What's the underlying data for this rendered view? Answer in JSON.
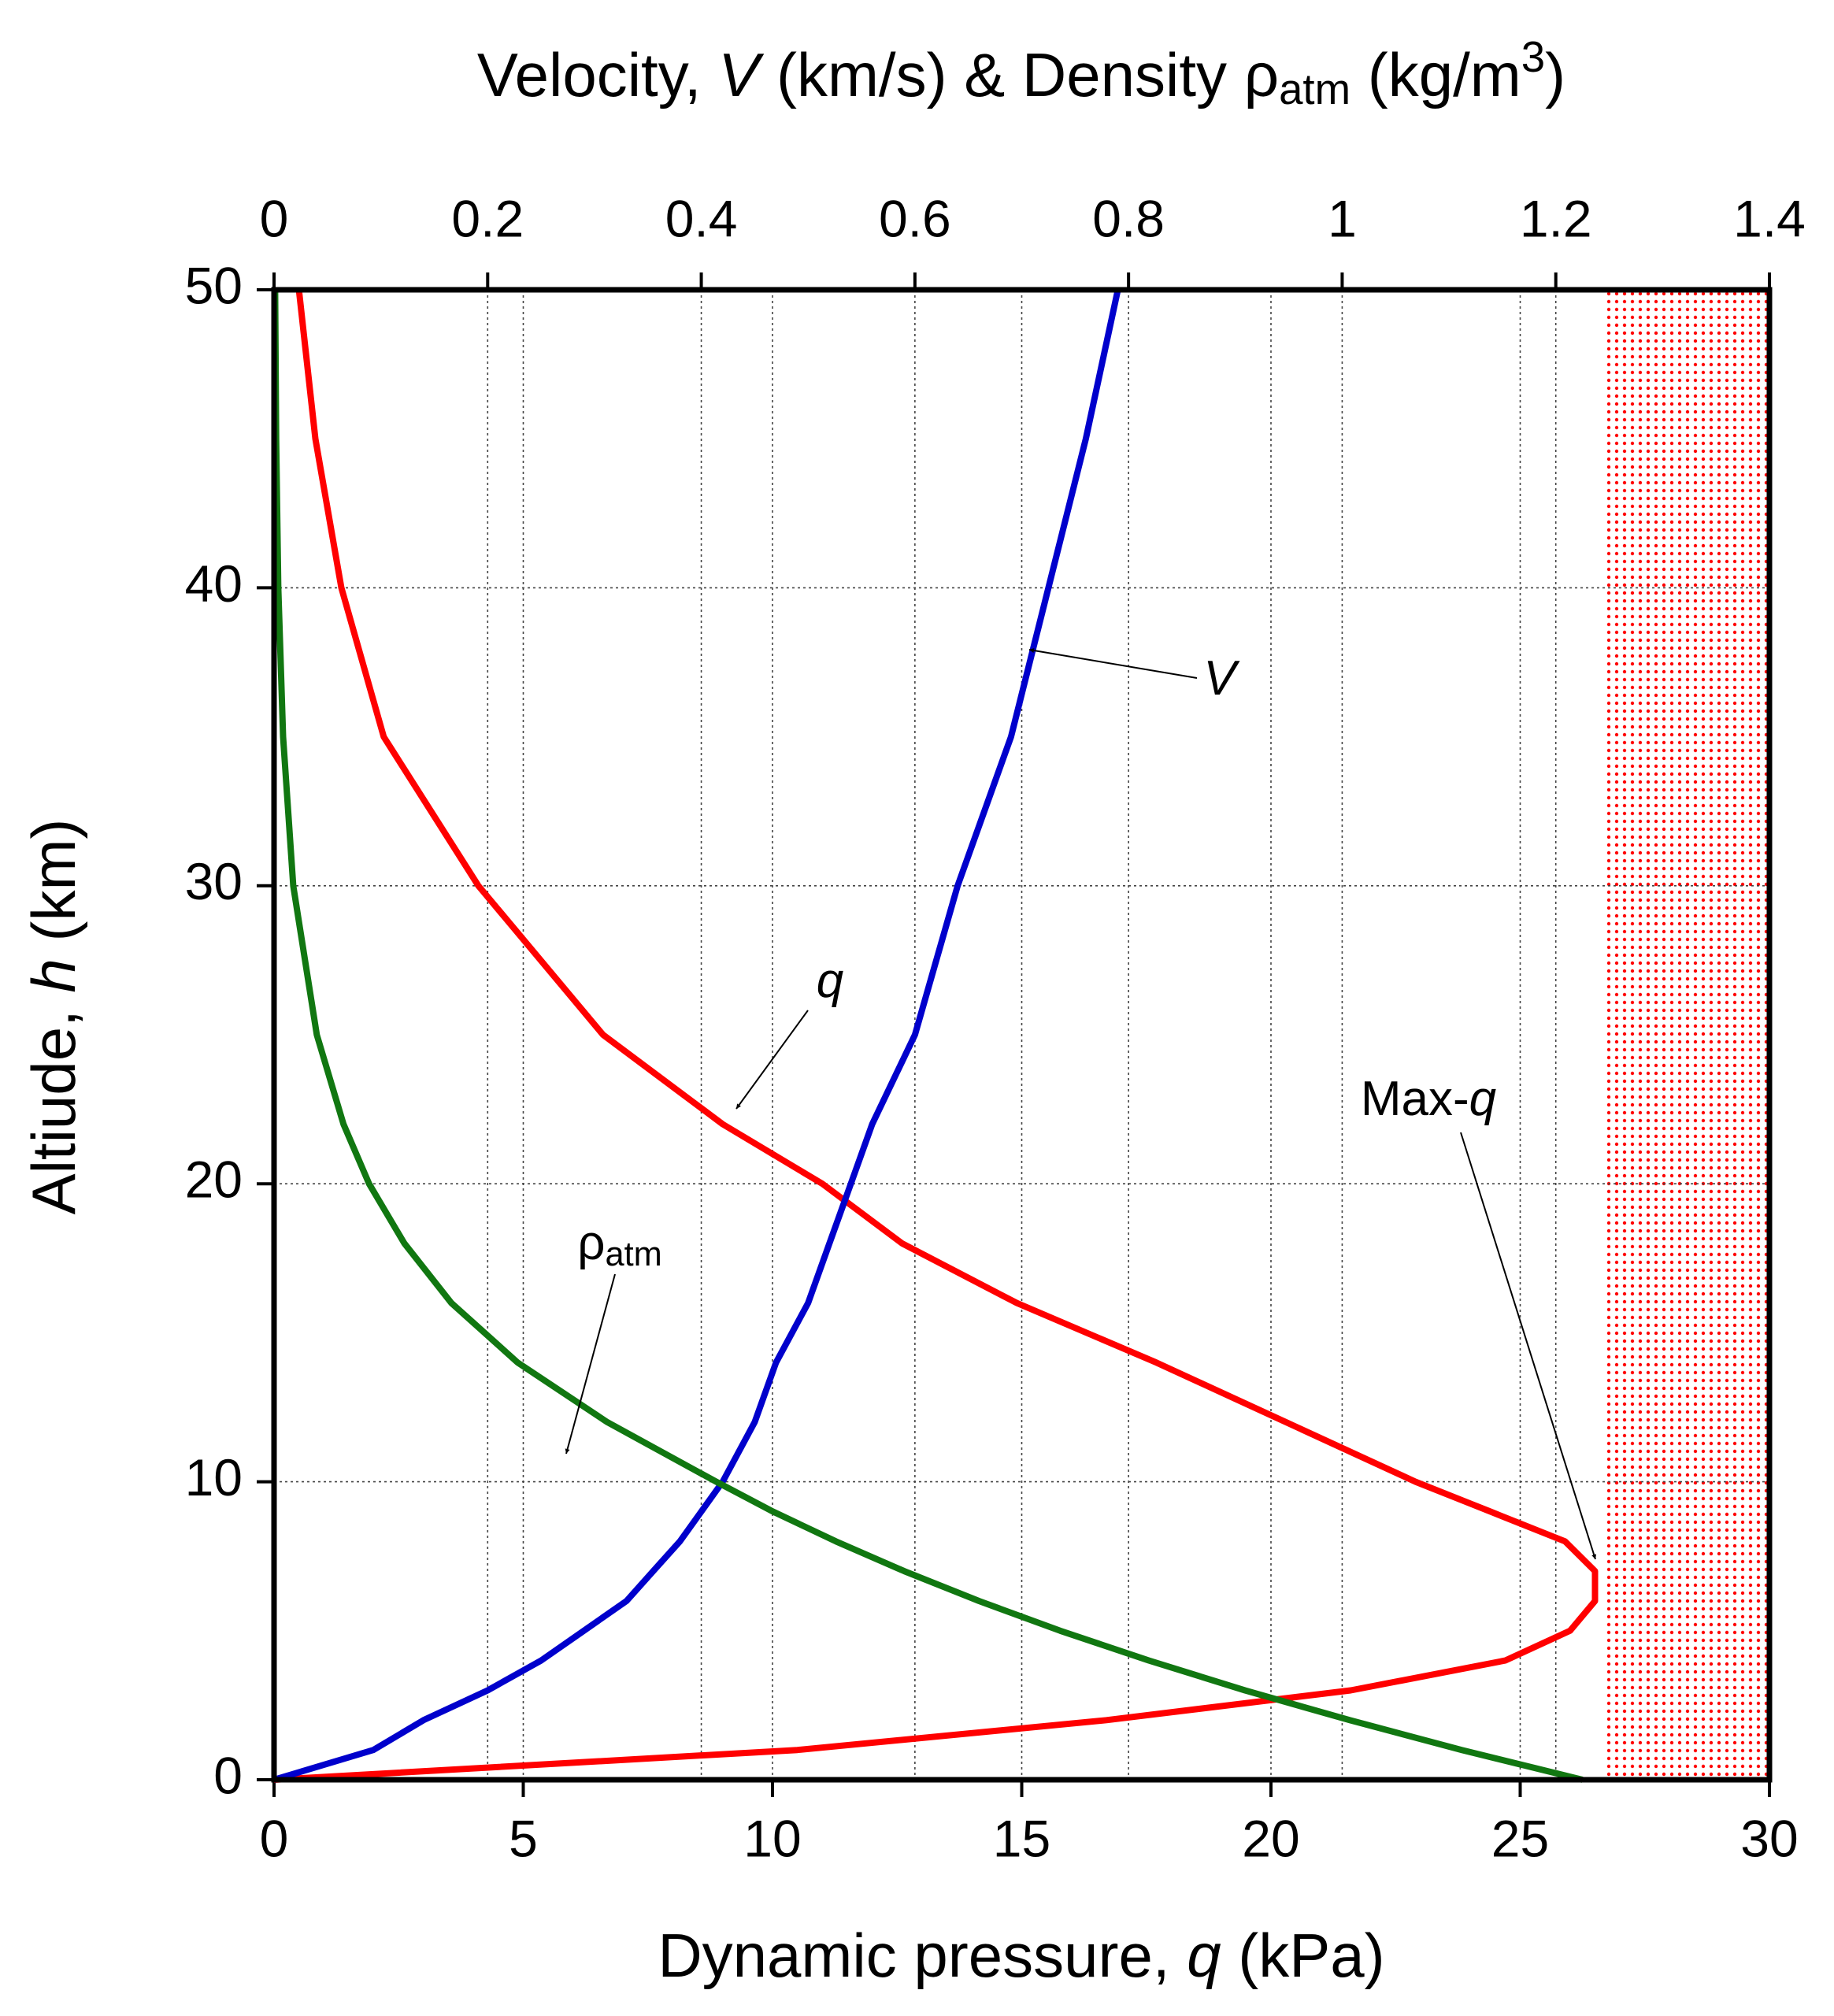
{
  "chart_data": {
    "type": "line",
    "xlabel": [
      {
        "text": "Dynamic pressure, "
      },
      {
        "text": "q",
        "style": "italic"
      },
      {
        "text": " (kPa)"
      }
    ],
    "x2label": [
      {
        "text": "Velocity, "
      },
      {
        "text": "V",
        "style": "italic"
      },
      {
        "text": " (km/s) & Density ρ"
      },
      {
        "text": "atm",
        "style": "sub"
      },
      {
        "text": " (kg/m"
      },
      {
        "text": "3",
        "style": "sup"
      },
      {
        "text": ")"
      }
    ],
    "ylabel": [
      {
        "text": "Altiude, "
      },
      {
        "text": "h",
        "style": "italic"
      },
      {
        "text": " (km)"
      }
    ],
    "xlim": [
      0,
      30
    ],
    "xticks": [
      0,
      5,
      10,
      15,
      20,
      25,
      30
    ],
    "x2lim": [
      0,
      1.4
    ],
    "x2ticks": [
      0,
      0.2,
      0.4,
      0.6,
      0.8,
      1,
      1.2,
      1.4
    ],
    "ylim": [
      0,
      50
    ],
    "yticks": [
      0,
      10,
      20,
      30,
      40,
      50
    ],
    "grid": true,
    "y": [
      0,
      1,
      2,
      3,
      4,
      5,
      6,
      7,
      8,
      9,
      10,
      12,
      14,
      16,
      18,
      20,
      22,
      25,
      30,
      35,
      40,
      45,
      50
    ],
    "series": [
      {
        "name": "q",
        "color": "#ff0000",
        "axis": "x",
        "values": [
          0,
          10.5,
          16.7,
          21.6,
          24.7,
          26.0,
          26.5,
          26.5,
          25.9,
          24.4,
          22.9,
          20.3,
          17.7,
          14.9,
          12.6,
          11.0,
          9.0,
          6.6,
          4.1,
          2.2,
          1.35,
          0.83,
          0.5
        ]
      },
      {
        "name": "V",
        "color": "#0000cc",
        "axis": "x2",
        "values": [
          0,
          0.093,
          0.14,
          0.2,
          0.25,
          0.29,
          0.33,
          0.355,
          0.38,
          0.4,
          0.42,
          0.45,
          0.47,
          0.5,
          0.52,
          0.54,
          0.56,
          0.6,
          0.64,
          0.69,
          0.725,
          0.76,
          0.79
        ]
      },
      {
        "name": "ρatm",
        "color": "#117711",
        "axis": "x2",
        "values": [
          1.225,
          1.112,
          1.007,
          0.909,
          0.819,
          0.736,
          0.66,
          0.59,
          0.526,
          0.467,
          0.414,
          0.312,
          0.228,
          0.166,
          0.122,
          0.089,
          0.065,
          0.04,
          0.018,
          0.0085,
          0.004,
          0.002,
          0.001
        ]
      }
    ],
    "shade": {
      "color": "#ff0000",
      "xrange": [
        26.7,
        30
      ]
    },
    "annotations": [
      {
        "parts": [
          {
            "text": "V",
            "style": "italic"
          }
        ]
      },
      {
        "parts": [
          {
            "text": "q",
            "style": "italic"
          }
        ]
      },
      {
        "parts": [
          {
            "text": "ρ"
          },
          {
            "text": "atm",
            "style": "sub"
          }
        ]
      },
      {
        "parts": [
          {
            "text": "Max-"
          },
          {
            "text": "q",
            "style": "italic"
          }
        ]
      }
    ]
  }
}
